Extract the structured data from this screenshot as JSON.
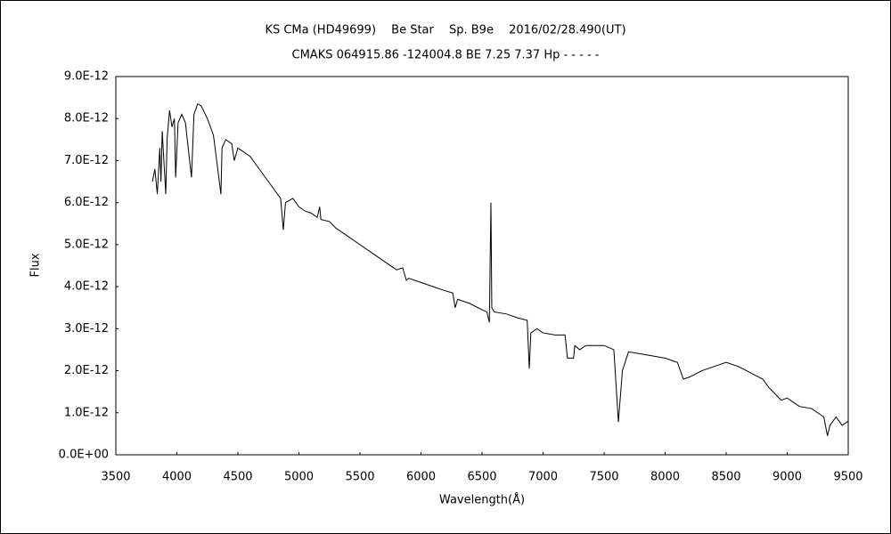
{
  "chart_data": {
    "type": "line",
    "title": "KS CMa (HD49699)　 Be Star　 Sp. B9e　 2016/02/28.490(UT)",
    "subtitle": "CMAKS 064915.86 -124004.8 BE 7.25 7.37 Hp - - - - -",
    "x_label": "Wavelength(Å)",
    "y_label": "Flux",
    "color": "#000000",
    "xlim": [
      3500,
      9500
    ],
    "xticks": [
      3500,
      4000,
      4500,
      5000,
      5500,
      6000,
      6500,
      7000,
      7500,
      8000,
      8500,
      9000,
      9500
    ],
    "ylim": [
      0,
      9e-12
    ],
    "yticks": [
      {
        "value": 0,
        "label": "0.0E+00"
      },
      {
        "value": 1e-12,
        "label": "1.0E-12"
      },
      {
        "value": 2e-12,
        "label": "2.0E-12"
      },
      {
        "value": 3e-12,
        "label": "3.0E-12"
      },
      {
        "value": 4e-12,
        "label": "4.0E-12"
      },
      {
        "value": 5e-12,
        "label": "5.0E-12"
      },
      {
        "value": 6e-12,
        "label": "6.0E-12"
      },
      {
        "value": 7e-12,
        "label": "7.0E-12"
      },
      {
        "value": 8e-12,
        "label": "8.0E-12"
      },
      {
        "value": 9e-12,
        "label": "9.0E-12"
      }
    ],
    "x": [
      3800,
      3820,
      3840,
      3860,
      3870,
      3880,
      3909,
      3920,
      3940,
      3960,
      3980,
      3990,
      4010,
      4040,
      4070,
      4120,
      4140,
      4170,
      4200,
      4250,
      4300,
      4361,
      4370,
      4400,
      4450,
      4470,
      4500,
      4600,
      4700,
      4800,
      4850,
      4872,
      4890,
      4950,
      5000,
      5050,
      5100,
      5150,
      5170,
      5180,
      5250,
      5300,
      5400,
      5500,
      5600,
      5700,
      5800,
      5850,
      5880,
      5900,
      6000,
      6100,
      6200,
      6260,
      6280,
      6300,
      6400,
      6500,
      6540,
      6560,
      6573,
      6580,
      6600,
      6700,
      6800,
      6870,
      6887,
      6900,
      6950,
      7000,
      7100,
      7180,
      7200,
      7250,
      7260,
      7300,
      7350,
      7500,
      7580,
      7617,
      7650,
      7700,
      7800,
      7900,
      8000,
      8100,
      8150,
      8200,
      8300,
      8400,
      8500,
      8600,
      8700,
      8800,
      8850,
      8900,
      8950,
      9000,
      9050,
      9100,
      9200,
      9300,
      9330,
      9350,
      9400,
      9450,
      9500
    ],
    "values": [
      6.5e-12,
      6.8e-12,
      6.2e-12,
      7.3e-12,
      6.5e-12,
      7.7e-12,
      6.2e-12,
      7.5e-12,
      8.2e-12,
      7.8e-12,
      8e-12,
      6.6e-12,
      7.9e-12,
      8.1e-12,
      7.9e-12,
      6.6e-12,
      8.1e-12,
      8.35e-12,
      8.3e-12,
      8e-12,
      7.6e-12,
      6.2e-12,
      7.3e-12,
      7.5e-12,
      7.4e-12,
      7e-12,
      7.3e-12,
      7.1e-12,
      6.7e-12,
      6.3e-12,
      6.1e-12,
      5.35e-12,
      6e-12,
      6.1e-12,
      5.9e-12,
      5.8e-12,
      5.75e-12,
      5.65e-12,
      5.9e-12,
      5.6e-12,
      5.55e-12,
      5.4e-12,
      5.2e-12,
      5e-12,
      4.8e-12,
      4.6e-12,
      4.4e-12,
      4.45e-12,
      4.15e-12,
      4.2e-12,
      4.1e-12,
      4e-12,
      3.9e-12,
      3.85e-12,
      3.5e-12,
      3.7e-12,
      3.6e-12,
      3.45e-12,
      3.4e-12,
      3.15e-12,
      6e-12,
      3.5e-12,
      3.4e-12,
      3.35e-12,
      3.25e-12,
      3.2e-12,
      2.05e-12,
      2.9e-12,
      3e-12,
      2.9e-12,
      2.85e-12,
      2.85e-12,
      2.3e-12,
      2.3e-12,
      2.6e-12,
      2.5e-12,
      2.6e-12,
      2.6e-12,
      2.5e-12,
      7.8e-13,
      2e-12,
      2.45e-12,
      2.4e-12,
      2.35e-12,
      2.3e-12,
      2.2e-12,
      1.8e-12,
      1.85e-12,
      2e-12,
      2.1e-12,
      2.2e-12,
      2.1e-12,
      1.95e-12,
      1.8e-12,
      1.6e-12,
      1.45e-12,
      1.3e-12,
      1.35e-12,
      1.25e-12,
      1.15e-12,
      1.1e-12,
      9e-13,
      4.5e-13,
      7e-13,
      9e-13,
      7e-13,
      8e-13
    ]
  }
}
